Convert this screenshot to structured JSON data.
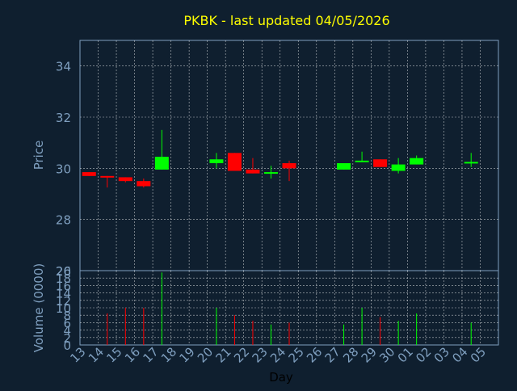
{
  "chart_data": [
    {
      "type": "candlestick",
      "title": "PKBK - last updated 04/05/2026",
      "ylabel": "Price",
      "ylim": [
        26,
        35
      ],
      "yticks": [
        28,
        30,
        32,
        34,
        26
      ],
      "grid": true,
      "days": [
        "13",
        "14",
        "15",
        "16",
        "17",
        "18",
        "19",
        "20",
        "21",
        "22",
        "23",
        "24",
        "25",
        "26",
        "27",
        "28",
        "29",
        "30",
        "01",
        "02",
        "03",
        "04",
        "05"
      ],
      "candles": [
        {
          "x": "13",
          "open": 29.85,
          "close": 29.7,
          "high": 29.85,
          "low": 29.7
        },
        {
          "x": "14",
          "open": 29.7,
          "close": 29.65,
          "high": 29.7,
          "low": 29.25
        },
        {
          "x": "15",
          "open": 29.65,
          "close": 29.5,
          "high": 29.65,
          "low": 29.45
        },
        {
          "x": "16",
          "open": 29.5,
          "close": 29.3,
          "high": 29.6,
          "low": 29.25
        },
        {
          "x": "17",
          "open": 29.95,
          "close": 30.45,
          "high": 31.5,
          "low": 29.95
        },
        {
          "x": "20",
          "open": 30.2,
          "close": 30.35,
          "high": 30.6,
          "low": 30.0
        },
        {
          "x": "21",
          "open": 30.6,
          "close": 29.9,
          "high": 30.6,
          "low": 29.9
        },
        {
          "x": "22",
          "open": 29.95,
          "close": 29.8,
          "high": 30.4,
          "low": 29.8
        },
        {
          "x": "23",
          "open": 29.8,
          "close": 29.85,
          "high": 30.1,
          "low": 29.6
        },
        {
          "x": "24",
          "open": 30.2,
          "close": 30.0,
          "high": 30.3,
          "low": 29.5
        },
        {
          "x": "27",
          "open": 29.95,
          "close": 30.2,
          "high": 30.2,
          "low": 29.95
        },
        {
          "x": "28",
          "open": 30.25,
          "close": 30.3,
          "high": 30.65,
          "low": 30.25
        },
        {
          "x": "29",
          "open": 30.35,
          "close": 30.05,
          "high": 30.35,
          "low": 30.05
        },
        {
          "x": "30",
          "open": 29.9,
          "close": 30.15,
          "high": 30.4,
          "low": 29.8
        },
        {
          "x": "01",
          "open": 30.15,
          "close": 30.4,
          "high": 30.5,
          "low": 30.15
        },
        {
          "x": "04",
          "open": 30.25,
          "close": 30.25,
          "high": 30.6,
          "low": 30.05
        }
      ]
    },
    {
      "type": "bar",
      "xlabel": "Day",
      "ylabel": "Volume (0000)",
      "ylim": [
        0,
        20
      ],
      "yticks": [
        0,
        2,
        4,
        6,
        8,
        10,
        12,
        14,
        16,
        18,
        20
      ],
      "grid": true,
      "categories": [
        "14",
        "15",
        "16",
        "17",
        "20",
        "21",
        "22",
        "23",
        "24",
        "27",
        "28",
        "29",
        "30",
        "01",
        "04"
      ],
      "values": [
        8.5,
        10,
        10,
        19.5,
        10,
        8,
        6.5,
        5.5,
        6,
        5.5,
        10,
        7.5,
        6.5,
        8.5,
        6
      ]
    }
  ]
}
